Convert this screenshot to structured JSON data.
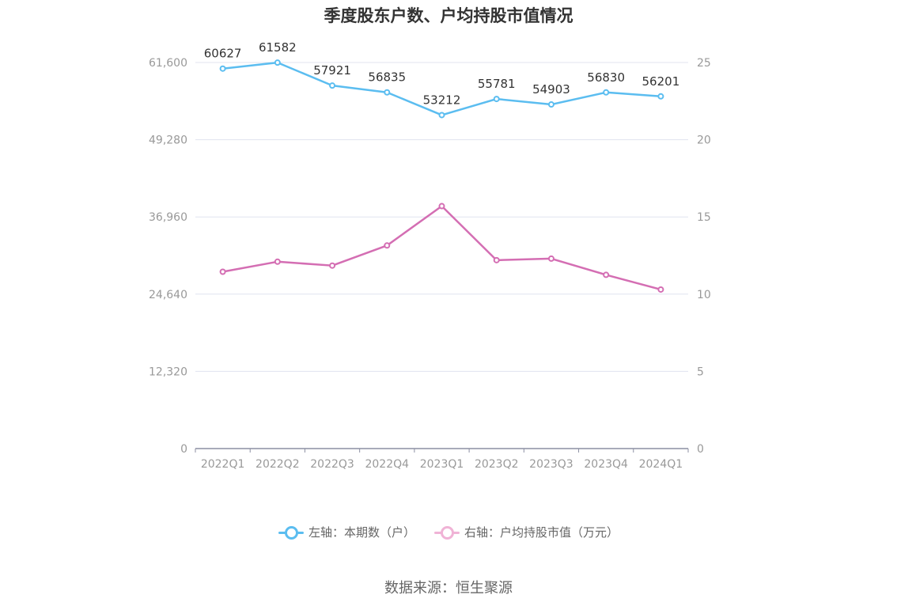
{
  "title": "季度股东户数、户均持股市值情况",
  "source": "数据来源：恒生聚源",
  "legend": {
    "left": "左轴：本期数（户）",
    "right": "右轴：户均持股市值（万元）"
  },
  "colors": {
    "series_left": "#5bbdf0",
    "series_right": "#d46eb3",
    "legend_right": "#f0b3d6",
    "grid": "#e0e3ef",
    "axis": "#8c8fa3",
    "tick_text": "#999999",
    "label_text": "#333333"
  },
  "chart_data": {
    "type": "line",
    "title": "季度股东户数、户均持股市值情况",
    "categories": [
      "2022Q1",
      "2022Q2",
      "2022Q3",
      "2022Q4",
      "2023Q1",
      "2023Q2",
      "2023Q3",
      "2023Q4",
      "2024Q1"
    ],
    "y_left": {
      "ticks": [
        0,
        12320,
        24640,
        36960,
        49280,
        61600
      ],
      "tick_labels": [
        "0",
        "12,320",
        "24,640",
        "36,960",
        "49,280",
        "61,600"
      ],
      "ylim": [
        0,
        61600
      ]
    },
    "y_right": {
      "ticks": [
        0,
        5,
        10,
        15,
        20,
        25
      ],
      "tick_labels": [
        "0",
        "5",
        "10",
        "15",
        "20",
        "25"
      ],
      "ylim": [
        0,
        25
      ]
    },
    "series": [
      {
        "name": "左轴：本期数（户）",
        "axis": "left",
        "values": [
          60627,
          61582,
          57921,
          56835,
          53212,
          55781,
          54903,
          56830,
          56201
        ],
        "data_labels": [
          "60627",
          "61582",
          "57921",
          "56835",
          "53212",
          "55781",
          "54903",
          "56830",
          "56201"
        ]
      },
      {
        "name": "右轴：户均持股市值（万元）",
        "axis": "right",
        "values": [
          11.45,
          12.1,
          11.85,
          13.15,
          15.7,
          12.2,
          12.3,
          11.25,
          10.3
        ]
      }
    ],
    "grid": true,
    "legend_position": "bottom"
  }
}
